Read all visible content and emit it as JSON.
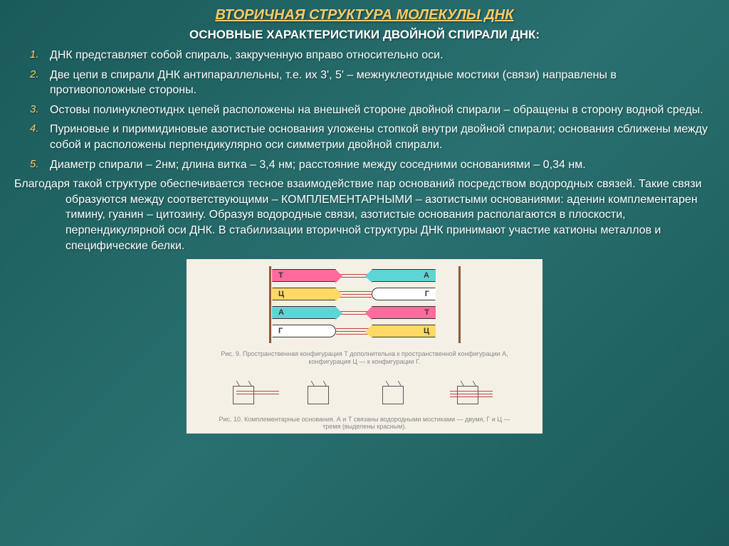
{
  "title": "ВТОРИЧНАЯ СТРУКТУРА МОЛЕКУЛЫ ДНК",
  "subtitle": "ОСНОВНЫЕ ХАРАКТЕРИСТИКИ ДВОЙНОЙ СПИРАЛИ ДНК:",
  "items": [
    {
      "num": "1.",
      "text": "ДНК представляет собой спираль, закрученную вправо относительно оси."
    },
    {
      "num": "2.",
      "text": "Две цепи в спирали ДНК антипараллельны, т.е. их 3', 5' – межнуклеотидные мостики (связи) направлены в противоположные стороны."
    },
    {
      "num": "3.",
      "text": "Остовы полинуклеотиднх цепей расположены на внешней стороне двойной спирали – обращены в сторону водной среды."
    },
    {
      "num": "4.",
      "text": "Пуриновые и пиримидиновые азотистые основания уложены стопкой внутри двойной спирали; основания сближены между собой и расположены перпендикулярно оси симметрии двойной спирали."
    },
    {
      "num": "5.",
      "text": "Диаметр спирали – 2нм; длина витка – 3,4 нм; расстояние между соседними основаниями – 0,34 нм."
    }
  ],
  "paragraph": "Благодаря такой структуре обеспечивается тесное взаимодействие пар оснований посредством водородных связей. Такие связи образуются между соответствующими – КОМПЛЕМЕНТАРНЫМИ – азотистыми основаниями: аденин комплементарен тимину, гуанин – цитозину. Образуя водородные связи, азотистые основания располагаются в плоскости, перпендикулярной оси ДНК. В стабилизации вторичной структуры ДНК принимают участие катионы металлов и специфические белки.",
  "figure": {
    "pairs": [
      {
        "left": "Т",
        "right": "А",
        "left_color": "#ff6b9d",
        "right_color": "#5dd5d5",
        "left_shape": "arrow",
        "right_shape": "arrow",
        "bonds": 2
      },
      {
        "left": "Ц",
        "right": "Г",
        "left_color": "#ffd966",
        "right_color": "#ffffff",
        "left_shape": "arrow",
        "right_shape": "rounded",
        "bonds": 3
      },
      {
        "left": "А",
        "right": "Т",
        "left_color": "#5dd5d5",
        "right_color": "#ff6b9d",
        "left_shape": "arrow",
        "right_shape": "arrow",
        "bonds": 2
      },
      {
        "left": "Г",
        "right": "Ц",
        "left_color": "#ffffff",
        "right_color": "#ffd966",
        "left_shape": "rounded",
        "right_shape": "arrow",
        "bonds": 3
      }
    ],
    "caption1": "Рис. 9. Пространственная конфигурация Т дополнительна к пространственной конфигурации А, конфигурация Ц — к конфигурации Г.",
    "caption2": "Рис. 10. Комплементарные основания. А и Т связаны водородными мостиками — двумя, Г и Ц — тремя (выделены красным).",
    "backbone_color": "#8a5a3a",
    "bond_color": "#c04040",
    "bg_color": "#f5f0e6"
  },
  "colors": {
    "title_color": "#ffcc66",
    "text_color": "#ffffff",
    "num_color": "#ffcc66",
    "background": "#2a6666"
  },
  "typography": {
    "title_fontsize": 20,
    "subtitle_fontsize": 17,
    "body_fontsize": 16,
    "caption_fontsize": 9,
    "font_family": "Arial"
  }
}
